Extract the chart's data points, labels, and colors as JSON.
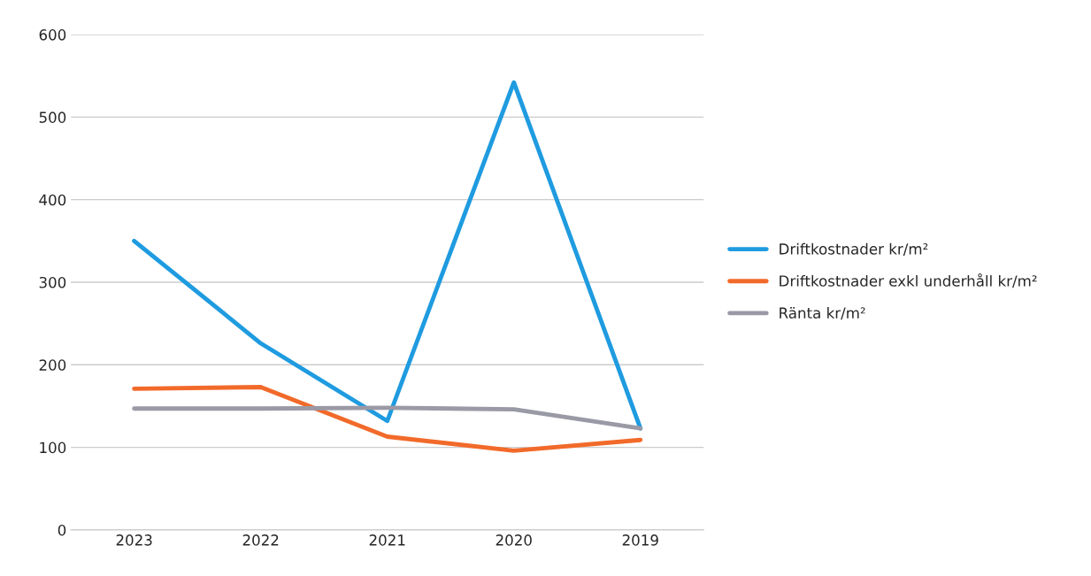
{
  "chart_data": {
    "type": "line",
    "categories": [
      "2023",
      "2022",
      "2021",
      "2020",
      "2019"
    ],
    "series": [
      {
        "name": "Driftkostnader kr/m²",
        "color": "#1f9be0",
        "values": [
          350,
          226,
          132,
          542,
          123
        ]
      },
      {
        "name": "Driftkostnader exkl underhåll kr/m²",
        "color": "#f26a2a",
        "values": [
          171,
          173,
          113,
          96,
          109
        ]
      },
      {
        "name": "Ränta kr/m²",
        "color": "#9a9aa6",
        "values": [
          147,
          147,
          148,
          146,
          123
        ]
      }
    ],
    "ylim": [
      0,
      600
    ],
    "yticks": [
      0,
      100,
      200,
      300,
      400,
      500,
      600
    ],
    "grid": "y",
    "legend": "right",
    "marker": "none",
    "line_style": "solid"
  }
}
